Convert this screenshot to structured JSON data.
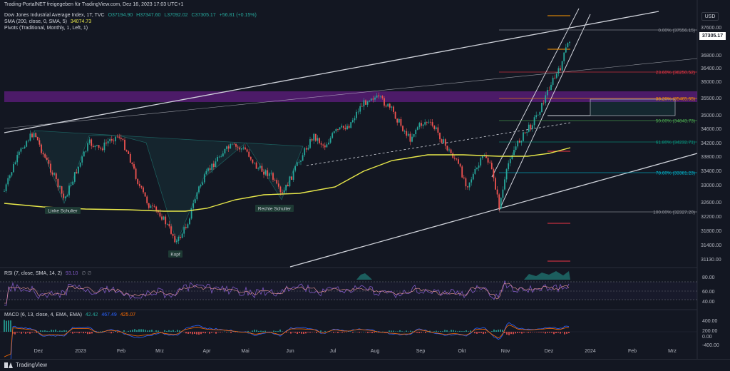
{
  "header": {
    "shared_by": "Trading-PortalNET freigegeben für TradingView.com, Dez 16, 2023 17:03 UTC+1"
  },
  "symbol": {
    "name": "Dow Jones Industrial Average Index, 1T, TVC",
    "open": "O37194.90",
    "high": "H37347.60",
    "low": "L37092.02",
    "close": "C37305.17",
    "change": "+56.81 (+0.15%)"
  },
  "indicators": {
    "sma": {
      "label": "SMA (200, close, 0, SMA, 5)",
      "value": "34074.73"
    },
    "pivots": {
      "label": "Pivots (Traditional, Monthly, 1, Left, 1)"
    },
    "rsi": {
      "label": "RSI (7, close, SMA, 14, 2)",
      "value": "93.10",
      "extra": "∅ ∅"
    },
    "macd": {
      "label": "MACD (6, 13, close, 4, EMA, EMA)",
      "v1": "42.42",
      "v2": "467.49",
      "v3": "425.07"
    }
  },
  "price_axis": {
    "currency": "USD",
    "last_price": "37305.17",
    "ticks": [
      "37600.00",
      "36800.00",
      "36400.00",
      "36000.00",
      "35500.00",
      "35000.00",
      "34600.00",
      "34200.00",
      "33800.00",
      "33400.00",
      "33000.00",
      "32600.00",
      "32200.00",
      "31800.00",
      "31400.00",
      "31130.00"
    ]
  },
  "rsi_axis": {
    "ticks": [
      "80.00",
      "60.00",
      "40.00"
    ]
  },
  "macd_axis": {
    "ticks": [
      "400.00",
      "200.00",
      "0.00",
      "-400.00"
    ]
  },
  "time_axis": {
    "labels": [
      "Dez",
      "2023",
      "Feb",
      "Mrz",
      "Apr",
      "Mai",
      "Jun",
      "Jul",
      "Aug",
      "Sep",
      "Okt",
      "Nov",
      "Dez",
      "2024",
      "Feb",
      "Mrz"
    ]
  },
  "fibonacci": [
    {
      "text": "0.00% (37556.15)",
      "color": "#9598a1"
    },
    {
      "text": "23.60% (36250.52)",
      "color": "#f23645"
    },
    {
      "text": "38.20% (35465.65)",
      "color": "#ff9800"
    },
    {
      "text": "50.00% (34843.73)",
      "color": "#4caf50"
    },
    {
      "text": "61.80% (34232.71)",
      "color": "#089981"
    },
    {
      "text": "78.60% (33381.23)",
      "color": "#00bcd4"
    },
    {
      "text": "100.00% (32327.20)",
      "color": "#9598a1"
    }
  ],
  "annotations": {
    "left_shoulder": "Linke Schulter",
    "head": "Kopf",
    "right_shoulder": "Rechte Schulter"
  },
  "footer": {
    "brand": "TradingView"
  },
  "colors": {
    "background": "#131722",
    "up": "#26a69a",
    "down": "#ef5350",
    "sma": "#e8e84a",
    "zone": "#7b1fa2",
    "rsi": "#7e57c2",
    "macd": "#2962ff",
    "signal": "#ff6d00"
  }
}
